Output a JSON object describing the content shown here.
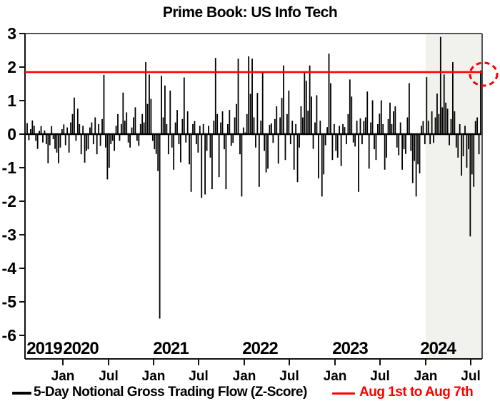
{
  "title": "Prime Book: US Info Tech",
  "legend": {
    "series_label": "5-Day Notional Gross Trading Flow (Z-Score)",
    "ref_label": "Aug 1st to Aug 7th"
  },
  "colors": {
    "bar": "#000000",
    "ref_line": "#ff0000",
    "highlight_circle": "#ff0000",
    "shade": "#f1f2ed",
    "frame_light": "#555555",
    "axis_dark": "#111111",
    "text": "#000000"
  },
  "chart_data": {
    "type": "bar",
    "title": "Prime Book: US Info Tech",
    "series_name": "5-Day Notional Gross Trading Flow (Z-Score)",
    "x_start": "2019-08",
    "x_end": "2024-08",
    "interval": "weekly",
    "ylim_top": 3,
    "ylim_bottom": -6.7,
    "grid": false,
    "y_ticks": [
      3,
      2,
      1,
      0,
      -1,
      -2,
      -3,
      -4,
      -5,
      -6
    ],
    "x_ticks": [
      {
        "label": "Jan",
        "x": 88
      },
      {
        "label": "Jul",
        "x": 152
      },
      {
        "label": "Jan",
        "x": 215
      },
      {
        "label": "Jul",
        "x": 278
      },
      {
        "label": "Jan",
        "x": 342
      },
      {
        "label": "Jul",
        "x": 405
      },
      {
        "label": "Jan",
        "x": 469
      },
      {
        "label": "Jul",
        "x": 532
      },
      {
        "label": "Jan",
        "x": 596
      },
      {
        "label": "Jul",
        "x": 659
      }
    ],
    "year_labels": [
      {
        "label": "2019",
        "x": 62
      },
      {
        "label": "2020",
        "x": 113
      },
      {
        "label": "2021",
        "x": 239
      },
      {
        "label": "2022",
        "x": 364
      },
      {
        "label": "2023",
        "x": 490
      },
      {
        "label": "2024",
        "x": 613
      }
    ],
    "ref_line": {
      "label": "Aug 1st to Aug 7th",
      "value": 1.85
    },
    "shaded_region": {
      "from_x": 596,
      "to_x": 675,
      "meaning": "2024 year-to-date"
    },
    "highlight_circle": {
      "cx": 677,
      "cy": 104,
      "rx": 19,
      "ry": 16,
      "marks": "latest reading at ref line"
    },
    "values": [
      0.33,
      -0.18,
      0.15,
      0.41,
      0.25,
      -0.2,
      -0.44,
      0.1,
      0.24,
      -0.25,
      0.11,
      -0.3,
      -0.87,
      -0.33,
      0.24,
      -0.15,
      -0.44,
      -0.55,
      -0.87,
      -0.4,
      0.15,
      0.29,
      -0.33,
      0.2,
      -0.55,
      0.35,
      0.6,
      1.09,
      -0.2,
      0.76,
      0.3,
      -0.6,
      0.25,
      -0.85,
      -0.5,
      -0.45,
      0.2,
      0.35,
      -0.3,
      0.5,
      -0.6,
      0.3,
      -0.35,
      0.45,
      1.77,
      -0.4,
      -1.35,
      -1.0,
      -0.3,
      -0.2,
      -0.5,
      0.25,
      0.6,
      -0.2,
      0.3,
      1.24,
      0.4,
      0.65,
      -0.25,
      -0.4,
      0.2,
      0.5,
      0.8,
      -0.2,
      -0.35,
      0.3,
      0.6,
      0.35,
      2.15,
      0.9,
      1.78,
      1.05,
      -0.2,
      -0.45,
      -0.59,
      -1.1,
      -5.5,
      1.74,
      0.5,
      1.45,
      0.3,
      -0.6,
      1.3,
      -0.4,
      -1.06,
      0.35,
      0.72,
      -0.3,
      -0.84,
      0.45,
      1.69,
      -0.25,
      0.68,
      -0.9,
      -1.72,
      0.3,
      0.39,
      -0.3,
      -0.55,
      0.25,
      -1.9,
      0.3,
      -1.8,
      -0.5,
      0.25,
      -0.7,
      -1.64,
      0.4,
      2.27,
      0.6,
      -1.28,
      0.35,
      0.68,
      -0.45,
      -1.64,
      0.3,
      0.72,
      -0.35,
      -0.26,
      0.5,
      0.9,
      2.25,
      -0.6,
      -1.86,
      0.2,
      0.05,
      0.6,
      2.32,
      1.2,
      2.25,
      0.5,
      -0.4,
      1.23,
      -1.57,
      0.4,
      1.86,
      -0.5,
      -1.14,
      -1.03,
      0.28,
      0.32,
      -0.26,
      0.45,
      0.83,
      -0.88,
      0.5,
      1.08,
      2.05,
      -0.77,
      0.6,
      1.3,
      -0.3,
      0.4,
      -1.06,
      0.3,
      -1.43,
      -0.4,
      0.83,
      0.5,
      1.85,
      1.59,
      0.7,
      2.05,
      1.12,
      -0.44,
      0.35,
      1.16,
      -1.32,
      0.4,
      -1.86,
      -1.2,
      -0.33,
      0.21,
      2.4,
      1.52,
      -0.77,
      0.3,
      -0.5,
      -0.7,
      0.25,
      -0.95,
      0.3,
      0.21,
      -0.3,
      0.6,
      1.63,
      1.12,
      -0.25,
      -0.37,
      0.4,
      -1.72,
      0.47,
      -0.3,
      0.39,
      0.5,
      1.27,
      -1.03,
      0.35,
      1.01,
      -0.45,
      -0.77,
      0.3,
      0.61,
      1.01,
      0.3,
      -1.06,
      -0.7,
      0.45,
      0.94,
      0.3,
      0.68,
      0.83,
      -0.4,
      -0.63,
      0.35,
      -1.06,
      -0.45,
      -0.59,
      0.5,
      1.52,
      -0.5,
      -1.46,
      -0.8,
      -1.86,
      -0.9,
      -1.17,
      0.25,
      0.39,
      -0.3,
      1.7,
      0.4,
      -0.3,
      0.68,
      -0.26,
      0.5,
      1.21,
      0.6,
      2.9,
      0.8,
      1.78,
      0.94,
      0.76,
      -0.33,
      0.45,
      2.15,
      0.68,
      -0.4,
      -0.7,
      0.3,
      -1.24,
      -0.66,
      0.25,
      -1.0,
      -0.45,
      -3.05,
      -1.2,
      -1.57,
      0.39,
      0.5,
      -0.6,
      1.9
    ]
  }
}
